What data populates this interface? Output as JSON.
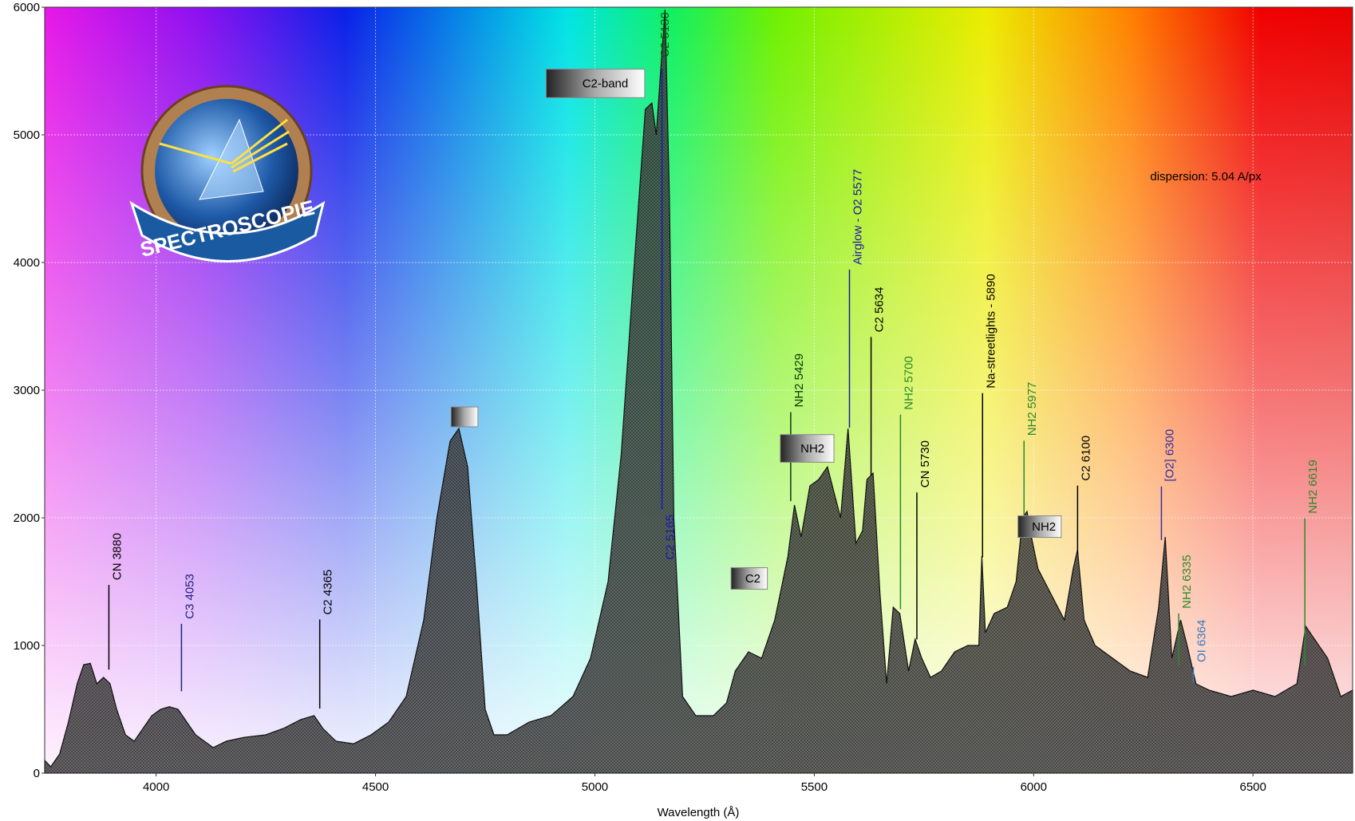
{
  "chart_data": {
    "type": "area",
    "x_label": "Wavelength (Å)",
    "annotation_text": "dispersion: 5.04 A/px",
    "logo_text": "SPECTROSCOPIE",
    "xlim": [
      3746,
      6727
    ],
    "ylim": [
      0,
      6000
    ],
    "xticks": [
      4000,
      4500,
      5000,
      5500,
      6000,
      6500
    ],
    "yticks": [
      0,
      1000,
      2000,
      3000,
      4000,
      5000,
      6000
    ],
    "grid": true,
    "color": "#3c3c3c",
    "x": [
      3746,
      3760,
      3780,
      3800,
      3820,
      3835,
      3850,
      3865,
      3880,
      3895,
      3910,
      3930,
      3950,
      3970,
      3990,
      4010,
      4030,
      4050,
      4070,
      4090,
      4110,
      4130,
      4160,
      4200,
      4250,
      4290,
      4330,
      4360,
      4380,
      4410,
      4450,
      4490,
      4530,
      4570,
      4610,
      4640,
      4670,
      4690,
      4710,
      4730,
      4750,
      4770,
      4800,
      4850,
      4900,
      4950,
      4990,
      5030,
      5060,
      5090,
      5115,
      5130,
      5140,
      5150,
      5160,
      5170,
      5180,
      5200,
      5230,
      5270,
      5300,
      5320,
      5350,
      5380,
      5410,
      5440,
      5455,
      5470,
      5490,
      5510,
      5530,
      5545,
      5560,
      5577,
      5595,
      5610,
      5620,
      5634,
      5650,
      5665,
      5680,
      5695,
      5715,
      5730,
      5745,
      5765,
      5790,
      5820,
      5850,
      5875,
      5882,
      5890,
      5910,
      5940,
      5960,
      5975,
      5985,
      5995,
      6010,
      6040,
      6070,
      6090,
      6100,
      6115,
      6140,
      6180,
      6220,
      6260,
      6285,
      6300,
      6315,
      6335,
      6350,
      6370,
      6400,
      6450,
      6500,
      6550,
      6600,
      6620,
      6640,
      6670,
      6700,
      6727
    ],
    "values": [
      100,
      50,
      150,
      400,
      700,
      850,
      860,
      700,
      750,
      700,
      500,
      300,
      250,
      350,
      450,
      500,
      520,
      500,
      400,
      300,
      250,
      200,
      250,
      280,
      300,
      350,
      420,
      450,
      350,
      250,
      230,
      300,
      400,
      600,
      1200,
      2000,
      2600,
      2700,
      2400,
      1500,
      500,
      300,
      300,
      400,
      450,
      600,
      900,
      1500,
      2500,
      4000,
      5200,
      5250,
      5000,
      5500,
      5980,
      4500,
      2000,
      600,
      450,
      450,
      550,
      800,
      950,
      900,
      1200,
      1700,
      2100,
      1850,
      2250,
      2300,
      2400,
      2200,
      2000,
      2700,
      1800,
      1900,
      2300,
      2350,
      1400,
      700,
      1300,
      1250,
      800,
      1050,
      900,
      750,
      800,
      950,
      1000,
      1000,
      1700,
      1100,
      1250,
      1300,
      1500,
      2000,
      2050,
      1850,
      1600,
      1400,
      1200,
      1600,
      1750,
      1200,
      1000,
      900,
      800,
      750,
      1300,
      1850,
      900,
      1200,
      1000,
      700,
      650,
      600,
      650,
      600,
      700,
      1150,
      1050,
      900,
      600,
      650
    ],
    "labels": [
      {
        "text": "CN 3880",
        "color": "#000000"
      },
      {
        "text": "C3 4053",
        "color": "#202080"
      },
      {
        "text": "C2 4365",
        "color": "#000000"
      },
      {
        "text": "C2 5130",
        "color": "#0a5a0a"
      },
      {
        "text": "C2 5165",
        "color": "#1a1ab0"
      },
      {
        "text": "NH2 5429",
        "color": "#0a3a0a"
      },
      {
        "text": "Airglow - O2 5577",
        "color": "#1a1aa0"
      },
      {
        "text": "C2 5634",
        "color": "#000000"
      },
      {
        "text": "NH2 5700",
        "color": "#2a8a2a"
      },
      {
        "text": "CN 5730",
        "color": "#000000"
      },
      {
        "text": "Na-streetlights - 5890",
        "color": "#000000"
      },
      {
        "text": "NH2 5977",
        "color": "#2a8a2a"
      },
      {
        "text": "C2 6100",
        "color": "#000000"
      },
      {
        "text": "[O2] 6300",
        "color": "#3030a0"
      },
      {
        "text": "NH2 6335",
        "color": "#2a8a2a"
      },
      {
        "text": "OI 6364",
        "color": "#3a7ac0"
      },
      {
        "text": "NH2 6619",
        "color": "#2a8a2a"
      }
    ],
    "boxes": [
      "C2-band",
      "NH2",
      "C2",
      "NH2",
      ""
    ]
  }
}
